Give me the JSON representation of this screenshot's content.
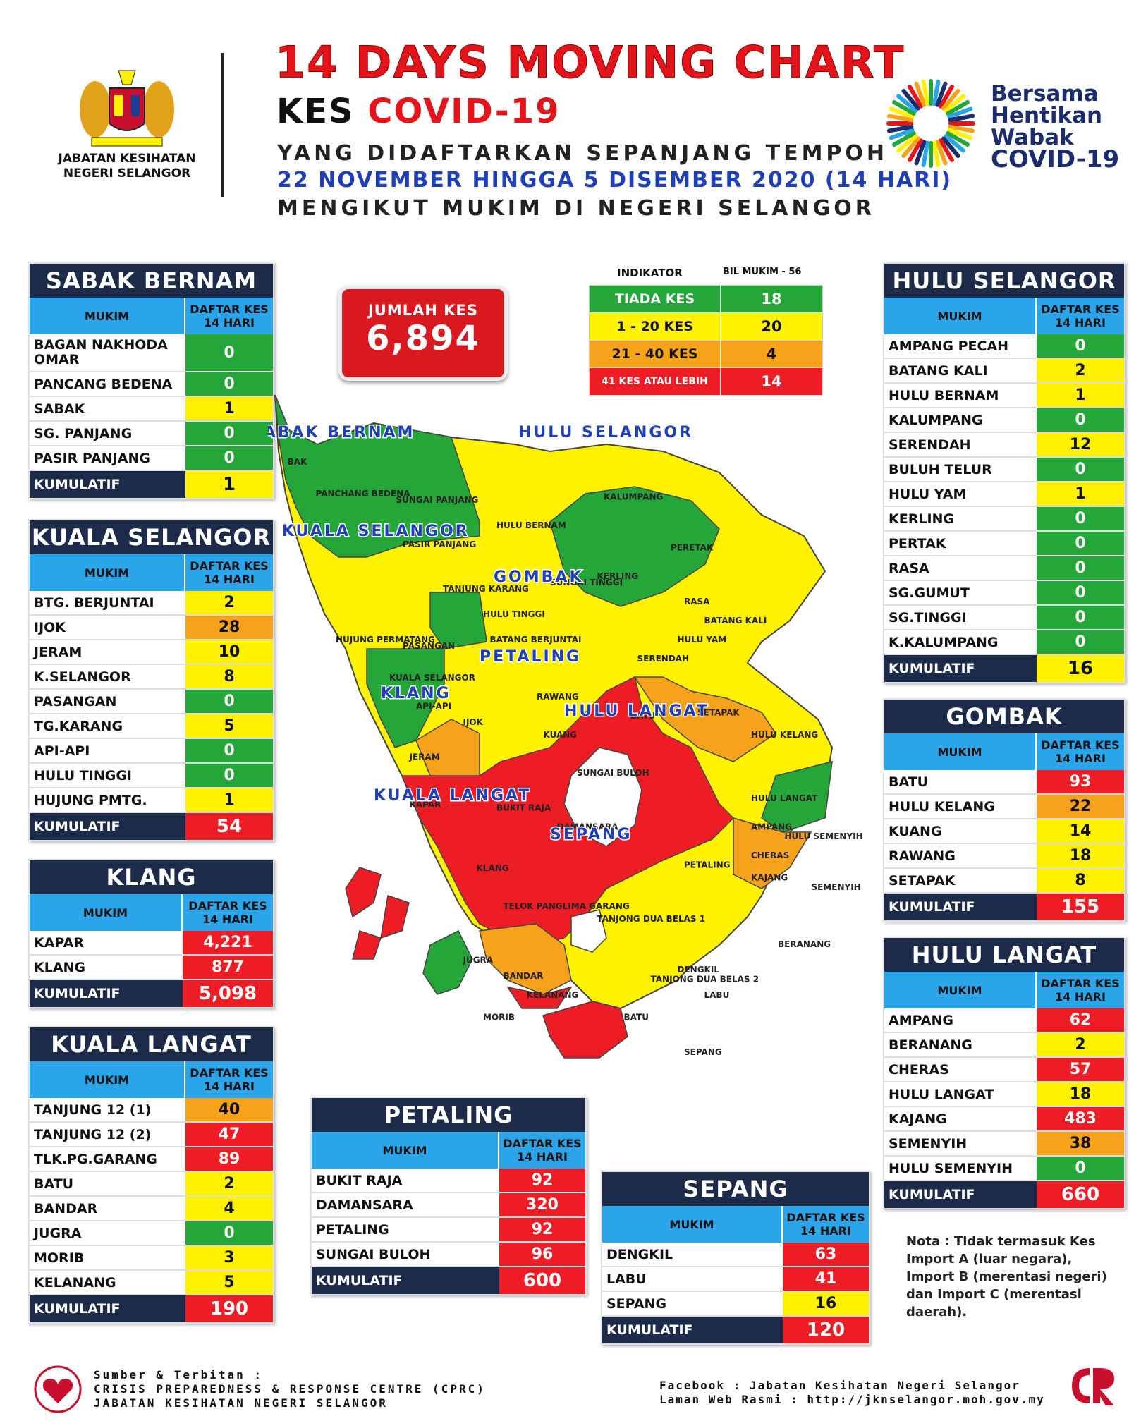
{
  "header": {
    "department": [
      "JABATAN KESIHATAN",
      "NEGERI SELANGOR"
    ],
    "title": "14 DAYS MOVING CHART",
    "kes_prefix": "KES",
    "kes_disease": "COVID-19",
    "line1": "YANG DIDAFTARKAN SEPANJANG TEMPOH",
    "line2": "22 NOVEMBER HINGGA 5 DISEMBER 2020 (14 HARI)",
    "line3": "MENGIKUT MUKIM DI NEGERI SELANGOR",
    "campaign": [
      "Bersama",
      "Hentikan",
      "Wabak",
      "COVID-19"
    ]
  },
  "total": {
    "label": "JUMLAH KES",
    "value": "6,894"
  },
  "indicator": {
    "head_left": "INDIKATOR",
    "head_right": "BIL MUKIM - 56",
    "rows": [
      {
        "label": "TIADA KES",
        "value": "18",
        "color": "#25a638"
      },
      {
        "label": "1 - 20 KES",
        "value": "20",
        "color": "#fff200"
      },
      {
        "label": "21 - 40 KES",
        "value": "4",
        "color": "#f7a21b"
      },
      {
        "label": "41 KES ATAU LEBIH",
        "value": "14",
        "color": "#ee1c24"
      }
    ]
  },
  "table_headers": {
    "mukim": "MUKIM",
    "daftar": "DAFTAR KES",
    "days": "14 HARI",
    "kumulatif": "KUMULATIF"
  },
  "districts": {
    "sabak_bernam": {
      "title": "SABAK BERNAM",
      "rows": [
        {
          "name": "BAGAN NAKHODA OMAR",
          "value": "0",
          "level": "g"
        },
        {
          "name": "PANCANG BEDENA",
          "value": "0",
          "level": "g"
        },
        {
          "name": "SABAK",
          "value": "1",
          "level": "y"
        },
        {
          "name": "SG. PANJANG",
          "value": "0",
          "level": "g"
        },
        {
          "name": "PASIR PANJANG",
          "value": "0",
          "level": "g"
        }
      ],
      "total": "1",
      "total_level": "y"
    },
    "kuala_selangor": {
      "title": "KUALA SELANGOR",
      "rows": [
        {
          "name": "BTG. BERJUNTAI",
          "value": "2",
          "level": "y"
        },
        {
          "name": "IJOK",
          "value": "28",
          "level": "o"
        },
        {
          "name": "JERAM",
          "value": "10",
          "level": "y"
        },
        {
          "name": "K.SELANGOR",
          "value": "8",
          "level": "y"
        },
        {
          "name": "PASANGAN",
          "value": "0",
          "level": "g"
        },
        {
          "name": "TG.KARANG",
          "value": "5",
          "level": "y"
        },
        {
          "name": "API-API",
          "value": "0",
          "level": "g"
        },
        {
          "name": "HULU TINGGI",
          "value": "0",
          "level": "g"
        },
        {
          "name": "HUJUNG PMTG.",
          "value": "1",
          "level": "y"
        }
      ],
      "total": "54",
      "total_level": "r"
    },
    "klang": {
      "title": "KLANG",
      "rows": [
        {
          "name": "KAPAR",
          "value": "4,221",
          "level": "r"
        },
        {
          "name": "KLANG",
          "value": "877",
          "level": "r"
        }
      ],
      "total": "5,098",
      "total_level": "r"
    },
    "kuala_langat": {
      "title": "KUALA LANGAT",
      "rows": [
        {
          "name": "TANJUNG 12 (1)",
          "value": "40",
          "level": "o"
        },
        {
          "name": "TANJUNG 12 (2)",
          "value": "47",
          "level": "r"
        },
        {
          "name": "TLK.PG.GARANG",
          "value": "89",
          "level": "r"
        },
        {
          "name": "BATU",
          "value": "2",
          "level": "y"
        },
        {
          "name": "BANDAR",
          "value": "4",
          "level": "y"
        },
        {
          "name": "JUGRA",
          "value": "0",
          "level": "g"
        },
        {
          "name": "MORIB",
          "value": "3",
          "level": "y"
        },
        {
          "name": "KELANANG",
          "value": "5",
          "level": "y"
        }
      ],
      "total": "190",
      "total_level": "r"
    },
    "petaling": {
      "title": "PETALING",
      "rows": [
        {
          "name": "BUKIT RAJA",
          "value": "92",
          "level": "r"
        },
        {
          "name": "DAMANSARA",
          "value": "320",
          "level": "r"
        },
        {
          "name": "PETALING",
          "value": "92",
          "level": "r"
        },
        {
          "name": "SUNGAI BULOH",
          "value": "96",
          "level": "r"
        }
      ],
      "total": "600",
      "total_level": "r"
    },
    "sepang": {
      "title": "SEPANG",
      "rows": [
        {
          "name": "DENGKIL",
          "value": "63",
          "level": "r"
        },
        {
          "name": "LABU",
          "value": "41",
          "level": "r"
        },
        {
          "name": "SEPANG",
          "value": "16",
          "level": "y"
        }
      ],
      "total": "120",
      "total_level": "r"
    },
    "hulu_selangor": {
      "title": "HULU SELANGOR",
      "rows": [
        {
          "name": "AMPANG PECAH",
          "value": "0",
          "level": "g"
        },
        {
          "name": "BATANG KALI",
          "value": "2",
          "level": "y"
        },
        {
          "name": "HULU BERNAM",
          "value": "1",
          "level": "y"
        },
        {
          "name": "KALUMPANG",
          "value": "0",
          "level": "g"
        },
        {
          "name": "SERENDAH",
          "value": "12",
          "level": "y"
        },
        {
          "name": "BULUH TELUR",
          "value": "0",
          "level": "g"
        },
        {
          "name": "HULU YAM",
          "value": "1",
          "level": "y"
        },
        {
          "name": "KERLING",
          "value": "0",
          "level": "g"
        },
        {
          "name": "PERTAK",
          "value": "0",
          "level": "g"
        },
        {
          "name": "RASA",
          "value": "0",
          "level": "g"
        },
        {
          "name": "SG.GUMUT",
          "value": "0",
          "level": "g"
        },
        {
          "name": "SG.TINGGI",
          "value": "0",
          "level": "g"
        },
        {
          "name": "K.KALUMPANG",
          "value": "0",
          "level": "g"
        }
      ],
      "total": "16",
      "total_level": "y"
    },
    "gombak": {
      "title": "GOMBAK",
      "rows": [
        {
          "name": "BATU",
          "value": "93",
          "level": "r"
        },
        {
          "name": "HULU KELANG",
          "value": "22",
          "level": "o"
        },
        {
          "name": "KUANG",
          "value": "14",
          "level": "y"
        },
        {
          "name": "RAWANG",
          "value": "18",
          "level": "y"
        },
        {
          "name": "SETAPAK",
          "value": "8",
          "level": "y"
        }
      ],
      "total": "155",
      "total_level": "r"
    },
    "hulu_langat": {
      "title": "HULU LANGAT",
      "rows": [
        {
          "name": "AMPANG",
          "value": "62",
          "level": "r"
        },
        {
          "name": "BERANANG",
          "value": "2",
          "level": "y"
        },
        {
          "name": "CHERAS",
          "value": "57",
          "level": "r"
        },
        {
          "name": "HULU LANGAT",
          "value": "18",
          "level": "y"
        },
        {
          "name": "KAJANG",
          "value": "483",
          "level": "r"
        },
        {
          "name": "SEMENYIH",
          "value": "38",
          "level": "o"
        },
        {
          "name": "HULU SEMENYIH",
          "value": "0",
          "level": "g"
        }
      ],
      "total": "660",
      "total_level": "r"
    }
  },
  "map": {
    "district_labels": [
      "SABAK BERNAM",
      "HULU SELANGOR",
      "KUALA SELANGOR",
      "GOMBAK",
      "PETALING",
      "KLANG",
      "HULU LANGAT",
      "KUALA LANGAT",
      "SEPANG"
    ],
    "mukim_labels": [
      "BAK",
      "PANCHANG BEDENA",
      "SUNGAI PANJANG",
      "PASIR PANJANG",
      "HULU BERNAM",
      "KALUMPANG",
      "PERETAK",
      "KERLING",
      "SUNGAI TINGGI",
      "RASA",
      "TANJUNG KARANG",
      "HULU TINGGI",
      "BATANG KALI",
      "HULU YAM",
      "HUJUNG PERMATANG",
      "PASANGAN",
      "BATANG BERJUNTAI",
      "SERENDAH",
      "KUALA SELANGOR",
      "RAWANG",
      "API-API",
      "IJOK",
      "SETAPAK",
      "BATU",
      "KUANG",
      "HULU KELANG",
      "JERAM",
      "SUNGAI BULOH",
      "HULU LANGAT",
      "KAPAR",
      "BUKIT RAJA",
      "DAMANSARA",
      "AMPANG",
      "HULU SEMENYIH",
      "CHERAS",
      "KLANG",
      "PETALING",
      "KAJANG",
      "SEMENYIH",
      "TELOK PANGLIMA GARANG",
      "TANJONG DUA BELAS 1",
      "BERANANG",
      "JUGRA",
      "DENGKIL",
      "BANDAR",
      "TANJONG DUA BELAS 2",
      "KELANANG",
      "LABU",
      "MORIB",
      "BATU",
      "SEPANG"
    ]
  },
  "note": "Nota : Tidak termasuk Kes Import A (luar negara), Import B (merentasi negeri) dan Import C (merentasi daerah).",
  "footer": {
    "source": [
      "Sumber & Terbitan :",
      "CRISIS PREPAREDNESS & RESPONSE CENTRE (CPRC)",
      "JABATAN KESIHATAN NEGERI SELANGOR"
    ],
    "contact": [
      "Facebook : Jabatan Kesihatan Negeri Selangor",
      "Laman Web Rasmi : http://jknselangor.moh.gov.my"
    ]
  }
}
